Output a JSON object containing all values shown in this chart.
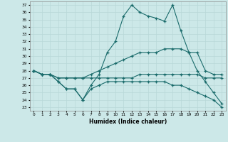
{
  "title": "",
  "xlabel": "Humidex (Indice chaleur)",
  "xlim": [
    -0.5,
    23.5
  ],
  "ylim": [
    22.5,
    37.5
  ],
  "yticks": [
    23,
    24,
    25,
    26,
    27,
    28,
    29,
    30,
    31,
    32,
    33,
    34,
    35,
    36,
    37
  ],
  "xticks": [
    0,
    1,
    2,
    3,
    4,
    5,
    6,
    7,
    8,
    9,
    10,
    11,
    12,
    13,
    14,
    15,
    16,
    17,
    18,
    19,
    20,
    21,
    22,
    23
  ],
  "bg_color": "#cce8e8",
  "line_color": "#1a6b6b",
  "lines": [
    {
      "x": [
        0,
        1,
        2,
        3,
        4,
        5,
        6,
        7,
        8,
        9,
        10,
        11,
        12,
        13,
        14,
        15,
        16,
        17,
        18,
        19,
        20,
        21,
        22,
        23
      ],
      "y": [
        28.0,
        27.5,
        27.5,
        26.5,
        25.5,
        25.5,
        24.0,
        26.0,
        27.5,
        30.5,
        32.0,
        35.5,
        37.0,
        36.0,
        35.5,
        35.2,
        34.8,
        37.0,
        33.5,
        30.5,
        28.0,
        26.5,
        25.0,
        23.5
      ]
    },
    {
      "x": [
        0,
        1,
        2,
        3,
        4,
        5,
        6,
        7,
        8,
        9,
        10,
        11,
        12,
        13,
        14,
        15,
        16,
        17,
        18,
        19,
        20,
        21,
        22,
        23
      ],
      "y": [
        28.0,
        27.5,
        27.5,
        27.0,
        27.0,
        27.0,
        27.0,
        27.5,
        28.0,
        28.5,
        29.0,
        29.5,
        30.0,
        30.5,
        30.5,
        30.5,
        31.0,
        31.0,
        31.0,
        30.5,
        30.5,
        28.0,
        27.5,
        27.5
      ]
    },
    {
      "x": [
        0,
        1,
        2,
        3,
        4,
        5,
        6,
        7,
        8,
        9,
        10,
        11,
        12,
        13,
        14,
        15,
        16,
        17,
        18,
        19,
        20,
        21,
        22,
        23
      ],
      "y": [
        28.0,
        27.5,
        27.5,
        27.0,
        27.0,
        27.0,
        27.0,
        27.0,
        27.0,
        27.0,
        27.0,
        27.0,
        27.0,
        27.5,
        27.5,
        27.5,
        27.5,
        27.5,
        27.5,
        27.5,
        27.5,
        27.0,
        27.0,
        27.0
      ]
    },
    {
      "x": [
        0,
        1,
        2,
        3,
        4,
        5,
        6,
        7,
        8,
        9,
        10,
        11,
        12,
        13,
        14,
        15,
        16,
        17,
        18,
        19,
        20,
        21,
        22,
        23
      ],
      "y": [
        28.0,
        27.5,
        27.5,
        26.5,
        25.5,
        25.5,
        24.0,
        25.5,
        26.0,
        26.5,
        26.5,
        26.5,
        26.5,
        26.5,
        26.5,
        26.5,
        26.5,
        26.0,
        26.0,
        25.5,
        25.0,
        24.5,
        24.0,
        23.0
      ]
    }
  ]
}
